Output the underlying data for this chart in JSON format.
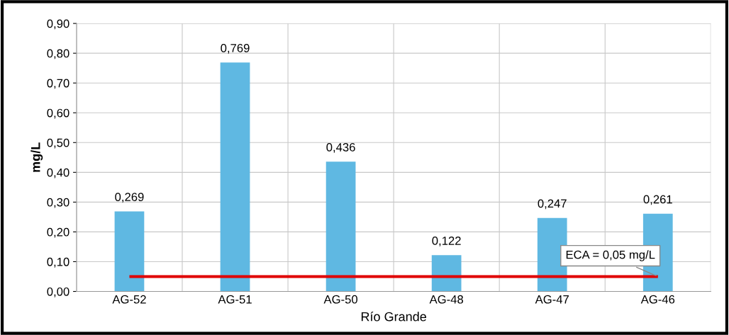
{
  "chart_data": {
    "type": "bar",
    "ylabel": "mg/L",
    "xlabel": "Río Grande",
    "categories": [
      "AG-52",
      "AG-51",
      "AG-50",
      "AG-48",
      "AG-47",
      "AG-46"
    ],
    "values": [
      0.269,
      0.769,
      0.436,
      0.122,
      0.247,
      0.261
    ],
    "value_labels": [
      "0,269",
      "0,769",
      "0,436",
      "0,122",
      "0,247",
      "0,261"
    ],
    "color": "#5fb8e2",
    "ylim": [
      0,
      0.9
    ],
    "yticks": [
      {
        "value": 0,
        "label": "0,00"
      },
      {
        "value": 0.1,
        "label": "0,10"
      },
      {
        "value": 0.2,
        "label": "0,20"
      },
      {
        "value": 0.3,
        "label": "0,30"
      },
      {
        "value": 0.4,
        "label": "0,40"
      },
      {
        "value": 0.5,
        "label": "0,50"
      },
      {
        "value": 0.6,
        "label": "0,60"
      },
      {
        "value": 0.7,
        "label": "0,70"
      },
      {
        "value": 0.8,
        "label": "0,80"
      },
      {
        "value": 0.9,
        "label": "0,90"
      }
    ],
    "ref_lines": [
      {
        "axis": "y",
        "value": 0.05,
        "label": "ECA = 0,05 mg/L",
        "color": "#e00000"
      }
    ],
    "grid": true,
    "legend": false
  }
}
